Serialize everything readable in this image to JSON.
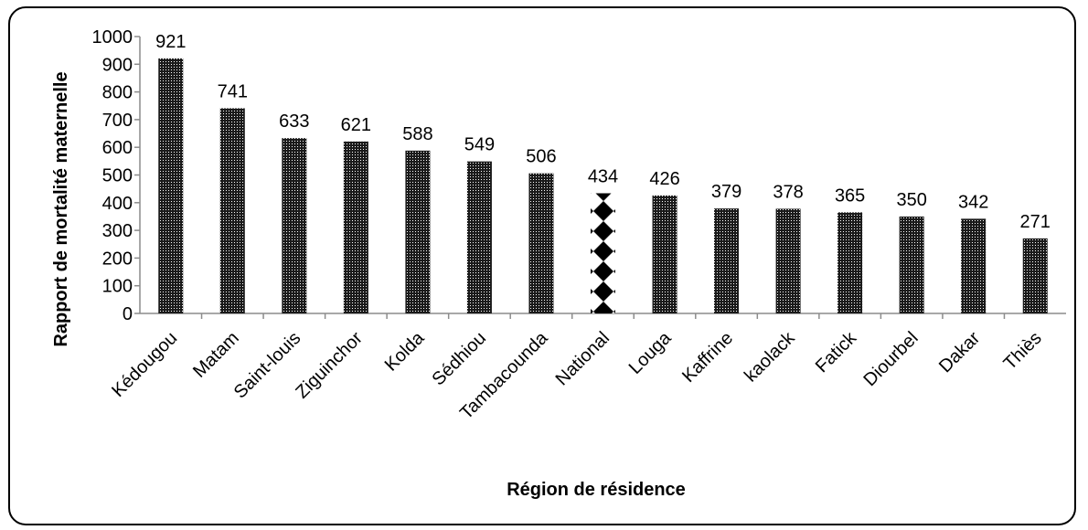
{
  "title": "",
  "chart_data": {
    "type": "bar",
    "title": "",
    "xlabel": "Région de résidence",
    "ylabel": "Rapport de mortalité maternelle",
    "ylim": [
      0,
      1000
    ],
    "yticks": [
      0,
      100,
      200,
      300,
      400,
      500,
      600,
      700,
      800,
      900,
      1000
    ],
    "categories": [
      "Kédougou",
      "Matam",
      "Saint-louis",
      "Ziguinchor",
      "Kolda",
      "Sédhiou",
      "Tambacounda",
      "National",
      "Louga",
      "Kaffrine",
      "kaolack",
      "Fatick",
      "Diourbel",
      "Dakar",
      "Thiès"
    ],
    "values": [
      921,
      741,
      633,
      621,
      588,
      549,
      506,
      434,
      426,
      379,
      378,
      365,
      350,
      342,
      271
    ],
    "highlight_category": "National",
    "grid": false,
    "legend": "none",
    "colors": {
      "bar": "#1a1a1a",
      "bar_dots": "#ffffff",
      "highlight": "#000000",
      "axis": "#8c8c8c",
      "frame": "#000000"
    }
  }
}
